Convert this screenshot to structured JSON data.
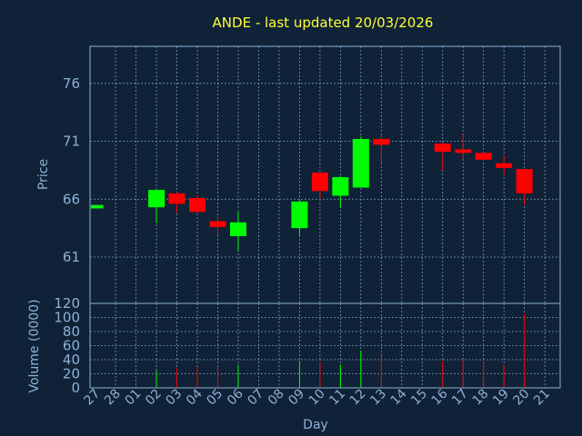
{
  "chart_data": {
    "type": "candlestick",
    "title": "ANDE - last updated 20/03/2026",
    "price_panel": {
      "ylabel": "Price",
      "ylim": [
        57,
        79.2
      ],
      "yticks": [
        61,
        66,
        71,
        76
      ]
    },
    "volume_panel": {
      "ylabel": "Volume (0000)",
      "ylim": [
        0,
        120
      ],
      "yticks": [
        0,
        20,
        40,
        60,
        80,
        100,
        120
      ]
    },
    "xlabel": "Day",
    "x_labels": [
      "27",
      "28",
      "01",
      "02",
      "03",
      "04",
      "05",
      "06",
      "07",
      "08",
      "09",
      "10",
      "11",
      "12",
      "13",
      "14",
      "15",
      "16",
      "17",
      "18",
      "19",
      "20",
      "21"
    ],
    "grid": true,
    "colors": {
      "up": "#00ff00",
      "down": "#ff0000",
      "background": "#0f2237",
      "axis": "#8fb1d4",
      "title": "#ffff3d"
    },
    "candles": [
      {
        "day": "27",
        "open": 65.2,
        "high": 65.5,
        "low": 65.2,
        "close": 65.5,
        "volume": 0
      },
      {
        "day": "02",
        "open": 65.3,
        "high": 66.8,
        "low": 63.9,
        "close": 66.8,
        "volume": 25
      },
      {
        "day": "03",
        "open": 66.5,
        "high": 66.6,
        "low": 64.8,
        "close": 65.6,
        "volume": 28
      },
      {
        "day": "04",
        "open": 66.1,
        "high": 66.3,
        "low": 64.8,
        "close": 64.9,
        "volume": 30
      },
      {
        "day": "05",
        "open": 64.1,
        "high": 64.4,
        "low": 62.9,
        "close": 63.6,
        "volume": 29
      },
      {
        "day": "06",
        "open": 62.8,
        "high": 64.9,
        "low": 61.5,
        "close": 64.0,
        "volume": 33
      },
      {
        "day": "09",
        "open": 63.5,
        "high": 65.9,
        "low": 62.9,
        "close": 65.8,
        "volume": 38
      },
      {
        "day": "10",
        "open": 68.3,
        "high": 68.3,
        "low": 66.0,
        "close": 66.7,
        "volume": 38
      },
      {
        "day": "11",
        "open": 66.3,
        "high": 68.0,
        "low": 65.3,
        "close": 67.9,
        "volume": 33
      },
      {
        "day": "12",
        "open": 67.0,
        "high": 71.4,
        "low": 67.0,
        "close": 71.2,
        "volume": 53
      },
      {
        "day": "13",
        "open": 71.2,
        "high": 71.4,
        "low": 69.1,
        "close": 70.7,
        "volume": 45
      },
      {
        "day": "16",
        "open": 70.8,
        "high": 70.9,
        "low": 68.5,
        "close": 70.1,
        "volume": 38
      },
      {
        "day": "17",
        "open": 70.3,
        "high": 71.6,
        "low": 69.5,
        "close": 70.0,
        "volume": 41
      },
      {
        "day": "18",
        "open": 70.0,
        "high": 70.0,
        "low": 69.3,
        "close": 69.4,
        "volume": 37
      },
      {
        "day": "19",
        "open": 69.1,
        "high": 69.8,
        "low": 68.1,
        "close": 68.7,
        "volume": 32
      },
      {
        "day": "20",
        "open": 68.6,
        "high": 68.6,
        "low": 65.5,
        "close": 66.5,
        "volume": 105
      }
    ]
  }
}
